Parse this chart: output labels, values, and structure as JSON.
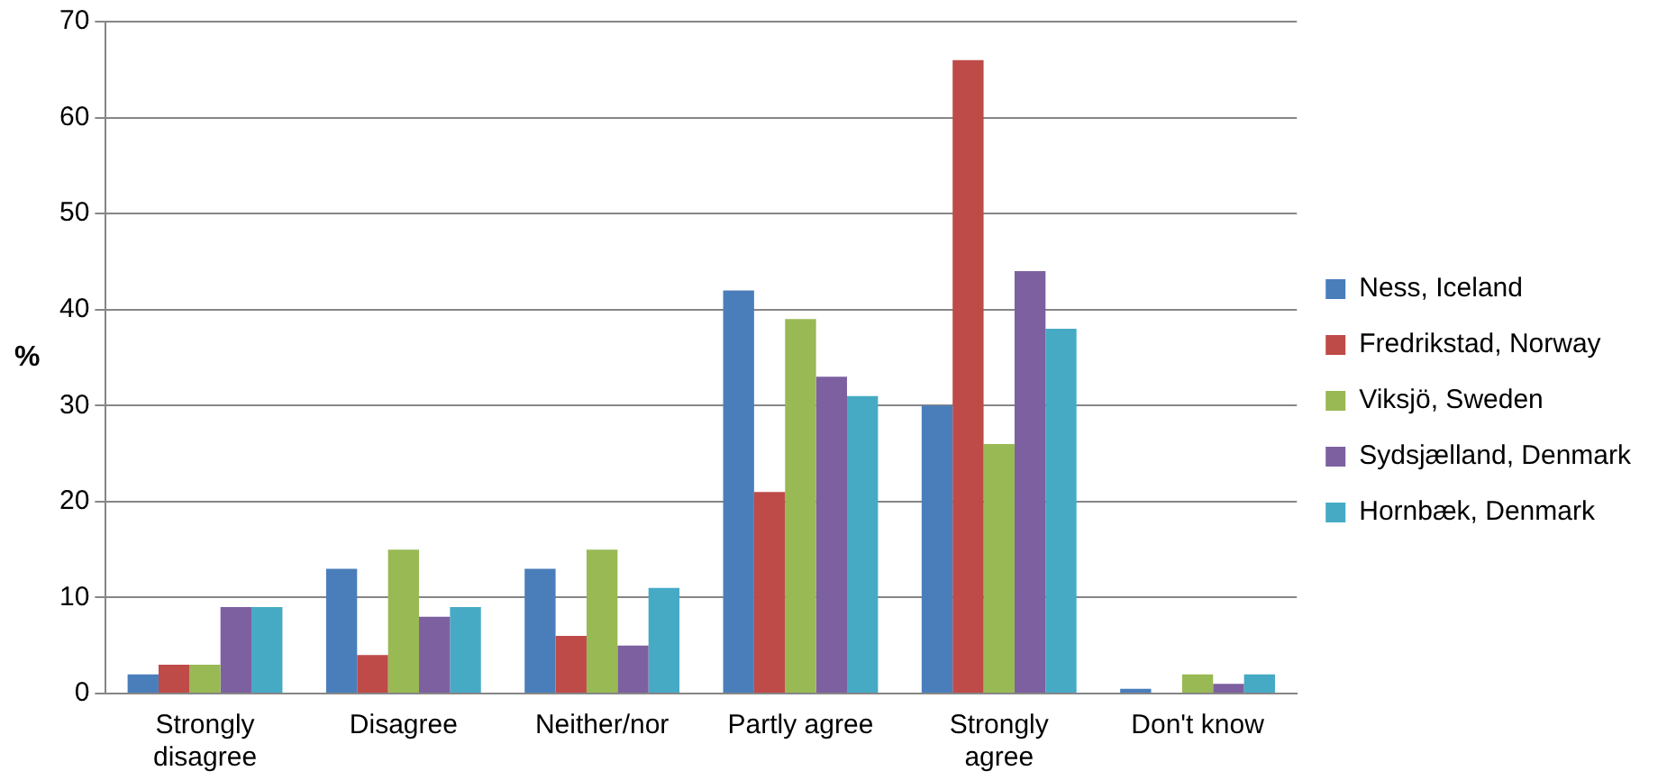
{
  "chart_data": {
    "type": "bar",
    "ylabel": "%",
    "categories": [
      "Strongly disagree",
      "Disagree",
      "Neither/nor",
      "Partly agree",
      "Strongly agree",
      "Don't know"
    ],
    "series": [
      {
        "name": "Ness, Iceland",
        "color": "#4a7ebb",
        "values": [
          2,
          13,
          13,
          42,
          30,
          0.5
        ]
      },
      {
        "name": "Fredrikstad, Norway",
        "color": "#be4b48",
        "values": [
          3,
          4,
          6,
          21,
          66,
          0
        ]
      },
      {
        "name": "Viksjö, Sweden",
        "color": "#98b954",
        "values": [
          3,
          15,
          15,
          39,
          26,
          2
        ]
      },
      {
        "name": "Sydsjælland, Denmark",
        "color": "#7d60a0",
        "values": [
          9,
          8,
          5,
          33,
          44,
          1
        ]
      },
      {
        "name": "Hornbæk, Denmark",
        "color": "#46aac5",
        "values": [
          9,
          9,
          11,
          31,
          38,
          2
        ]
      }
    ],
    "ylim": [
      0,
      70
    ],
    "yticks": [
      0,
      10,
      20,
      30,
      40,
      50,
      60,
      70
    ],
    "grid": "y",
    "legend": "right"
  }
}
